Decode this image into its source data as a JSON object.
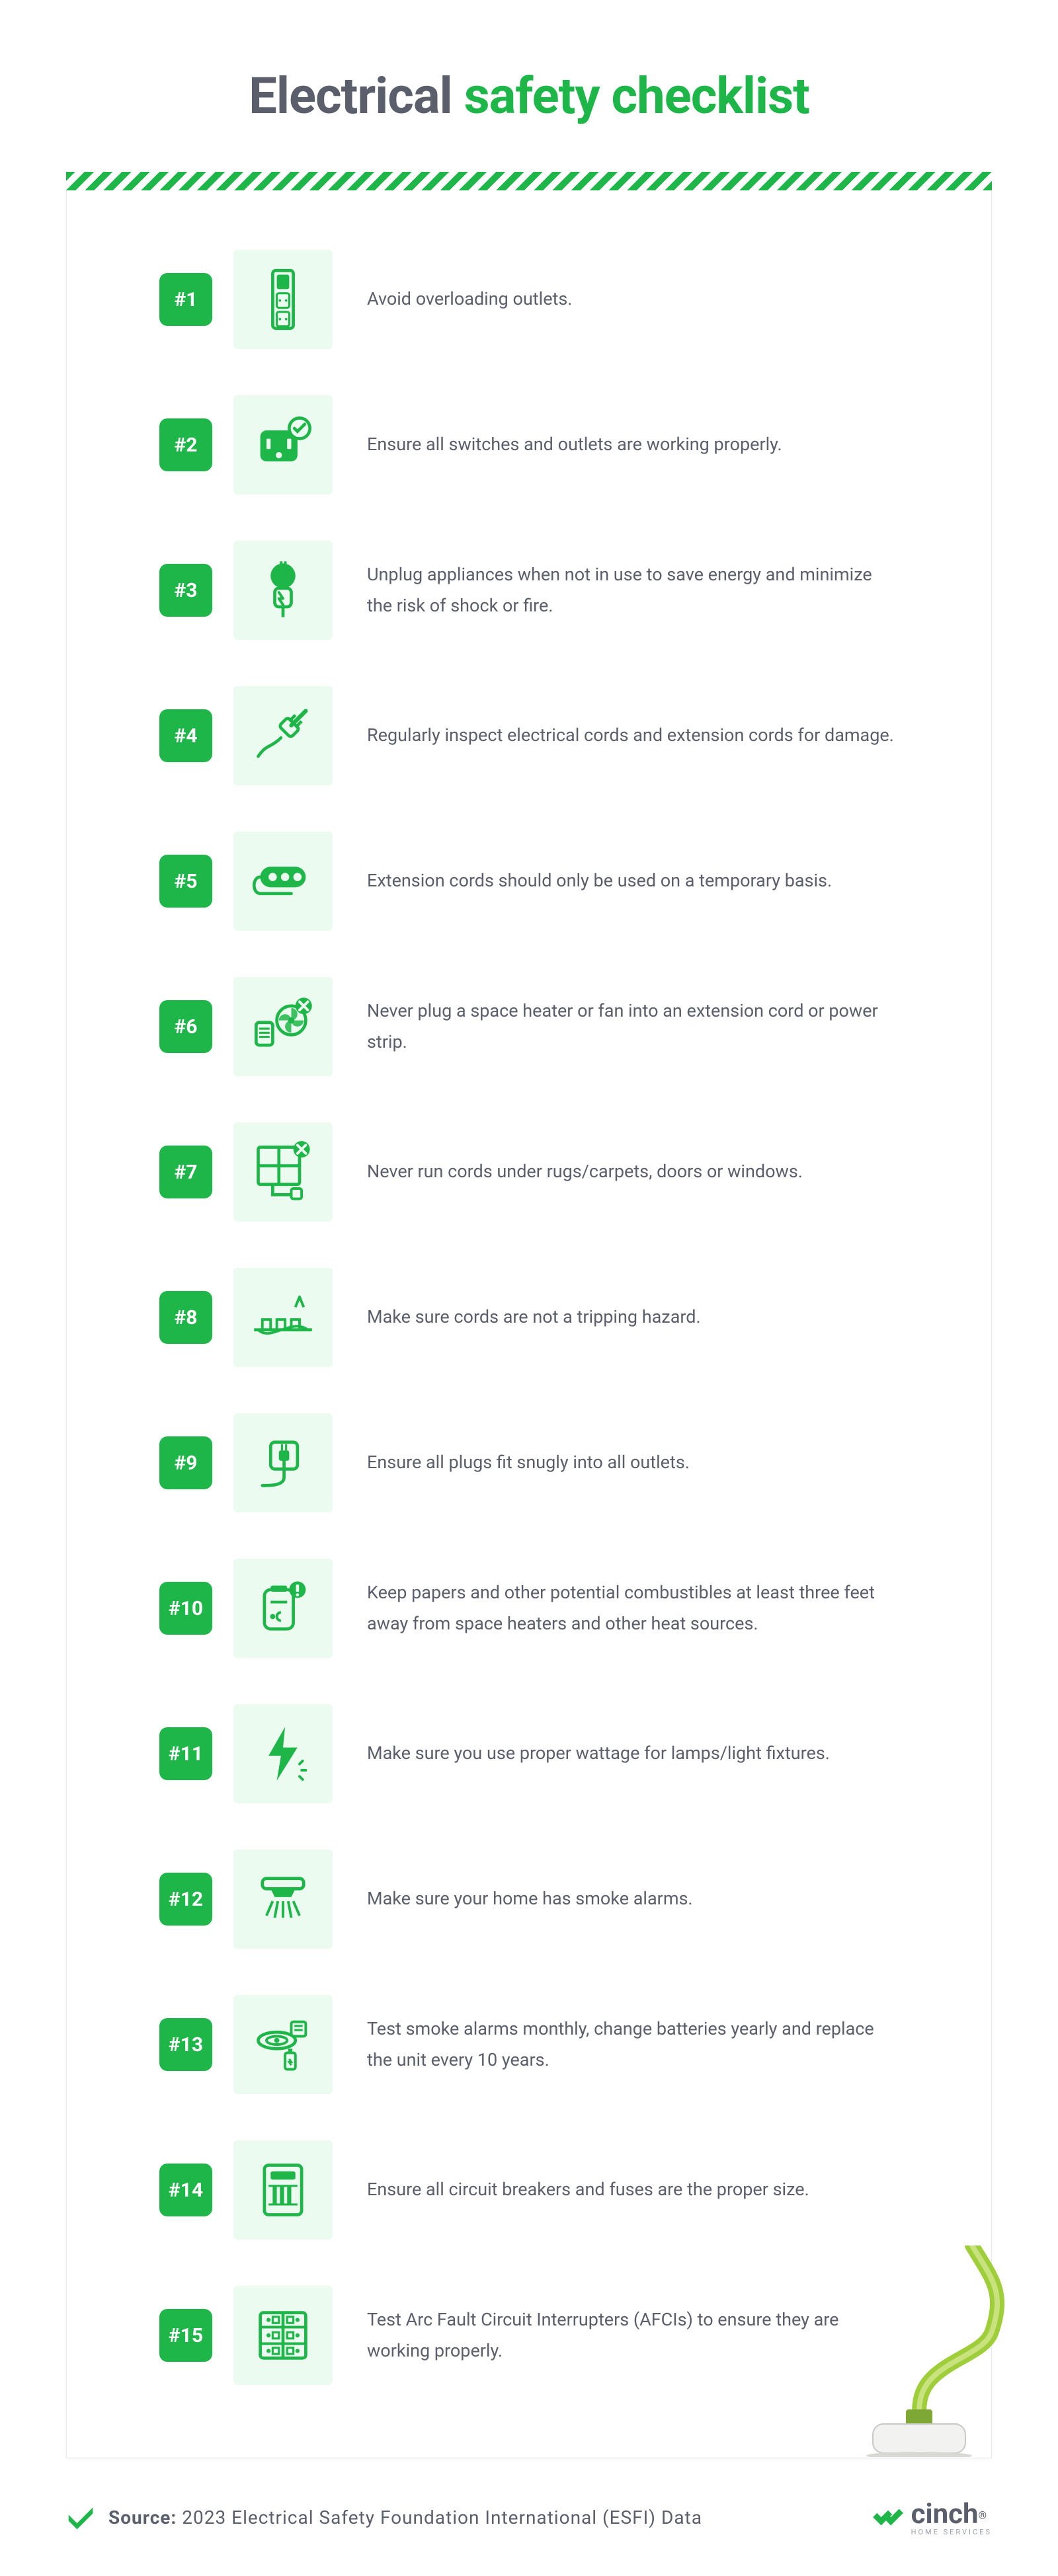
{
  "title": {
    "part1": "Electrical",
    "part2": "safety checklist"
  },
  "colors": {
    "accent": "#1fb649",
    "iconBg": "#ecfbf0",
    "text": "#5a5f6b",
    "border": "#e7e9ec",
    "pageBg": "#ffffff"
  },
  "checklist": [
    {
      "num": "#1",
      "icon": "outlet-overload-icon",
      "text": "Avoid overloading outlets."
    },
    {
      "num": "#2",
      "icon": "outlet-check-icon",
      "text": "Ensure all switches and outlets are working properly."
    },
    {
      "num": "#3",
      "icon": "unplug-icon",
      "text": "Unplug appliances when not in use to save energy and minimize the risk of shock or fire."
    },
    {
      "num": "#4",
      "icon": "cord-damage-icon",
      "text": "Regularly inspect electrical cords and extension cords for damage."
    },
    {
      "num": "#5",
      "icon": "extension-cord-icon",
      "text": "Extension cords should only be used on a temporary basis."
    },
    {
      "num": "#6",
      "icon": "heater-fan-x-icon",
      "text": "Never plug a space heater or fan into an extension cord or power strip."
    },
    {
      "num": "#7",
      "icon": "window-cord-x-icon",
      "text": "Never run cords under rugs/carpets, doors or windows."
    },
    {
      "num": "#8",
      "icon": "trip-hazard-icon",
      "text": "Make sure cords are not a tripping hazard."
    },
    {
      "num": "#9",
      "icon": "plug-outlet-icon",
      "text": "Ensure all plugs fit snugly into all outlets."
    },
    {
      "num": "#10",
      "icon": "combustible-icon",
      "text": "Keep papers and other potential combustibles at least three feet away from space heaters and other heat sources."
    },
    {
      "num": "#11",
      "icon": "wattage-bolt-icon",
      "text": "Make sure you use proper wattage for lamps/light fixtures."
    },
    {
      "num": "#12",
      "icon": "smoke-alarm-icon",
      "text": "Make sure your home has smoke alarms."
    },
    {
      "num": "#13",
      "icon": "alarm-test-icon",
      "text": "Test smoke alarms monthly, change batteries yearly and replace the unit every 10 years."
    },
    {
      "num": "#14",
      "icon": "breaker-panel-icon",
      "text": "Ensure all circuit breakers and fuses are the proper size."
    },
    {
      "num": "#15",
      "icon": "afci-panel-icon",
      "text": "Test Arc Fault Circuit Interrupters (AFCIs) to ensure they are working properly."
    }
  ],
  "source": {
    "label": "Source:",
    "text": "2023 Electrical Safety Foundation International (ESFI) Data"
  },
  "logo": {
    "name": "cinch",
    "sub": "HOME SERVICES"
  }
}
